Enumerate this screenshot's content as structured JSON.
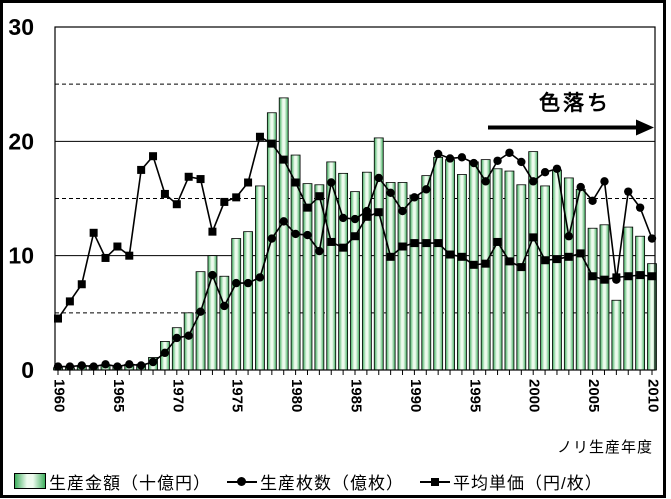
{
  "chart_data": {
    "type": "combo",
    "title": "",
    "xlabel": "ノリ生産年度",
    "ylim": [
      0,
      30
    ],
    "yticks": [
      0,
      10,
      20,
      30
    ],
    "solid_gridlines": [
      10,
      20
    ],
    "dashed_gridlines": [
      5,
      15,
      25
    ],
    "xtick_label_interval": 5,
    "legend_position": "bottom",
    "annotation": {
      "label": "色落ち"
    },
    "categories": [
      1960,
      1961,
      1962,
      1963,
      1964,
      1965,
      1966,
      1967,
      1968,
      1969,
      1970,
      1971,
      1972,
      1973,
      1974,
      1975,
      1976,
      1977,
      1978,
      1979,
      1980,
      1981,
      1982,
      1983,
      1984,
      1985,
      1986,
      1987,
      1988,
      1989,
      1990,
      1991,
      1992,
      1993,
      1994,
      1995,
      1996,
      1997,
      1998,
      1999,
      2000,
      2001,
      2002,
      2003,
      2004,
      2005,
      2006,
      2007,
      2008,
      2009,
      2010
    ],
    "series": [
      {
        "name": "生産金額（十億円）",
        "type": "bar",
        "values": [
          0.2,
          0.2,
          0.3,
          0.4,
          0.4,
          0.4,
          0.5,
          0.5,
          1.1,
          2.5,
          3.7,
          5.0,
          8.6,
          10.0,
          8.2,
          11.5,
          12.1,
          16.1,
          22.5,
          23.8,
          18.8,
          16.3,
          16.2,
          18.2,
          17.2,
          15.6,
          17.3,
          20.3,
          16.4,
          16.4,
          15.3,
          17.0,
          18.6,
          18.4,
          17.1,
          18.2,
          18.4,
          17.6,
          17.4,
          16.2,
          19.1,
          16.1,
          17.5,
          16.8,
          15.8,
          12.4,
          12.7,
          6.1,
          12.5,
          11.7,
          9.3
        ]
      },
      {
        "name": "生産枚数（億枚）",
        "type": "line",
        "marker": "circle",
        "values": [
          0.3,
          0.3,
          0.4,
          0.3,
          0.5,
          0.3,
          0.5,
          0.4,
          0.7,
          1.5,
          2.8,
          3.0,
          5.1,
          8.3,
          5.6,
          7.6,
          7.6,
          8.1,
          11.5,
          13.0,
          11.9,
          11.8,
          10.4,
          16.4,
          13.3,
          13.2,
          13.9,
          16.8,
          15.5,
          13.9,
          15.1,
          15.8,
          18.9,
          18.5,
          18.6,
          18.1,
          16.5,
          18.3,
          19.0,
          18.2,
          16.5,
          17.3,
          17.6,
          11.7,
          16.0,
          14.8,
          16.5,
          7.9,
          15.6,
          14.2,
          11.5
        ]
      },
      {
        "name": "平均単価（円/枚）",
        "type": "line",
        "marker": "square",
        "values": [
          4.5,
          6.0,
          7.5,
          12.0,
          9.8,
          10.8,
          10.0,
          17.5,
          18.7,
          15.4,
          14.5,
          16.9,
          16.7,
          12.1,
          14.7,
          15.1,
          16.4,
          20.4,
          19.8,
          18.4,
          16.4,
          14.2,
          15.2,
          11.2,
          10.7,
          11.7,
          13.4,
          13.8,
          9.9,
          10.8,
          11.1,
          11.1,
          11.1,
          10.1,
          9.9,
          9.2,
          9.3,
          11.2,
          9.5,
          9.0,
          11.6,
          9.6,
          9.7,
          9.9,
          10.2,
          8.2,
          7.9,
          8.1,
          8.2,
          8.3,
          8.2
        ]
      }
    ],
    "colors": {
      "bar_fill_edge": "#3fae5e",
      "bar_fill_center": "#eefbee",
      "bar_stroke": "#000000",
      "line": "#000000",
      "grid": "#000000",
      "background": "#ffffff",
      "text": "#000000"
    }
  }
}
